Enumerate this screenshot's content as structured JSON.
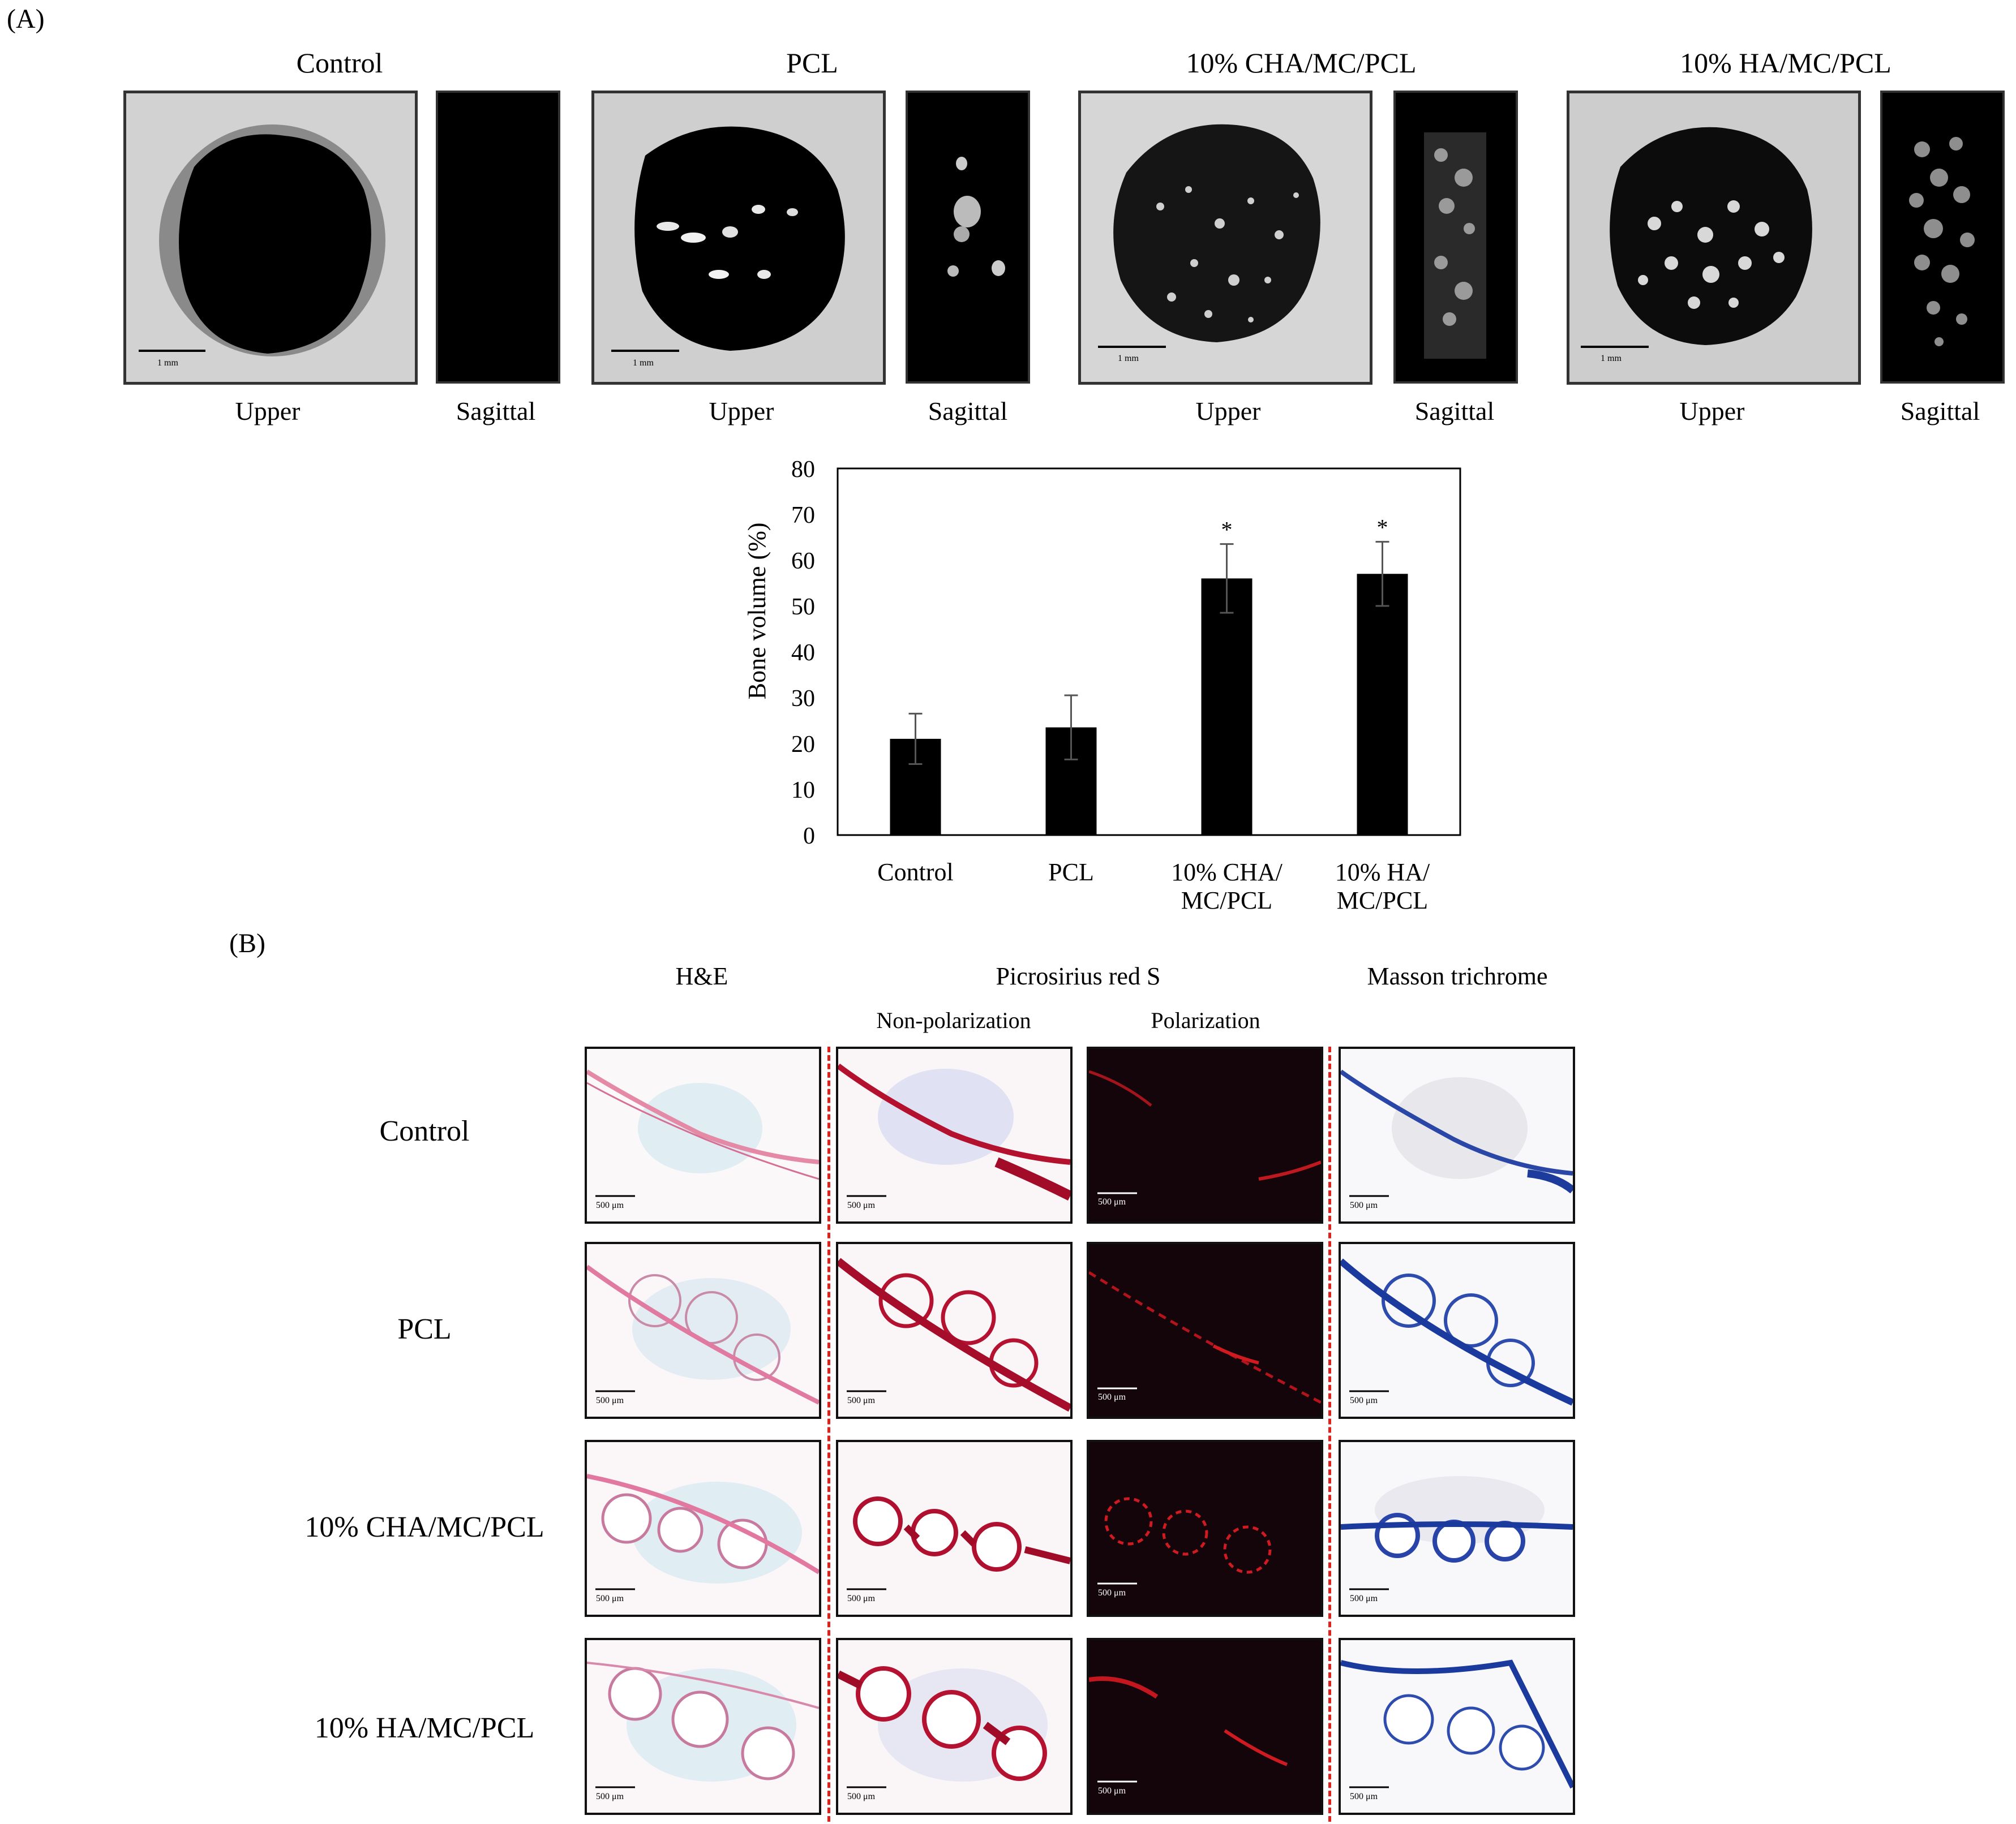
{
  "panel_a": {
    "label": "(A)",
    "groups": [
      {
        "title": "Control",
        "upper_label": "Upper",
        "sagittal_label": "Sagittal",
        "scale": "1 mm"
      },
      {
        "title": "PCL",
        "upper_label": "Upper",
        "sagittal_label": "Sagittal",
        "scale": "1 mm"
      },
      {
        "title": "10% CHA/MC/PCL",
        "upper_label": "Upper",
        "sagittal_label": "Sagittal",
        "scale": "1 mm"
      },
      {
        "title": "10% HA/MC/PCL",
        "upper_label": "Upper",
        "sagittal_label": "Sagittal",
        "scale": "1 mm"
      }
    ]
  },
  "chart_data": {
    "type": "bar",
    "categories": [
      "Control",
      "PCL",
      "10% CHA/\nMC/PCL",
      "10% HA/\nMC/PCL"
    ],
    "category_lines": [
      [
        "Control"
      ],
      [
        "PCL"
      ],
      [
        "10% CHA/",
        "MC/PCL"
      ],
      [
        "10% HA/",
        "MC/PCL"
      ]
    ],
    "values": [
      21,
      23.5,
      56,
      57
    ],
    "errors": [
      5.5,
      7,
      7.5,
      7
    ],
    "significance": [
      "",
      "",
      "*",
      "*"
    ],
    "ylabel": "Bone volume (%)",
    "xlabel": "",
    "ylim": [
      0,
      80
    ],
    "yticks": [
      0,
      10,
      20,
      30,
      40,
      50,
      60,
      70,
      80
    ],
    "bar_color": "#000000",
    "grid": false
  },
  "panel_b": {
    "label": "(B)",
    "columns": {
      "he": "H&E",
      "picrosirius": "Picrosirius red S",
      "non_pol": "Non-polarization",
      "pol": "Polarization",
      "masson": "Masson trichrome"
    },
    "rows": [
      "Control",
      "PCL",
      "10% CHA/MC/PCL",
      "10% HA/MC/PCL"
    ],
    "scale": "500 μm",
    "divider_color": "#e0201a"
  }
}
